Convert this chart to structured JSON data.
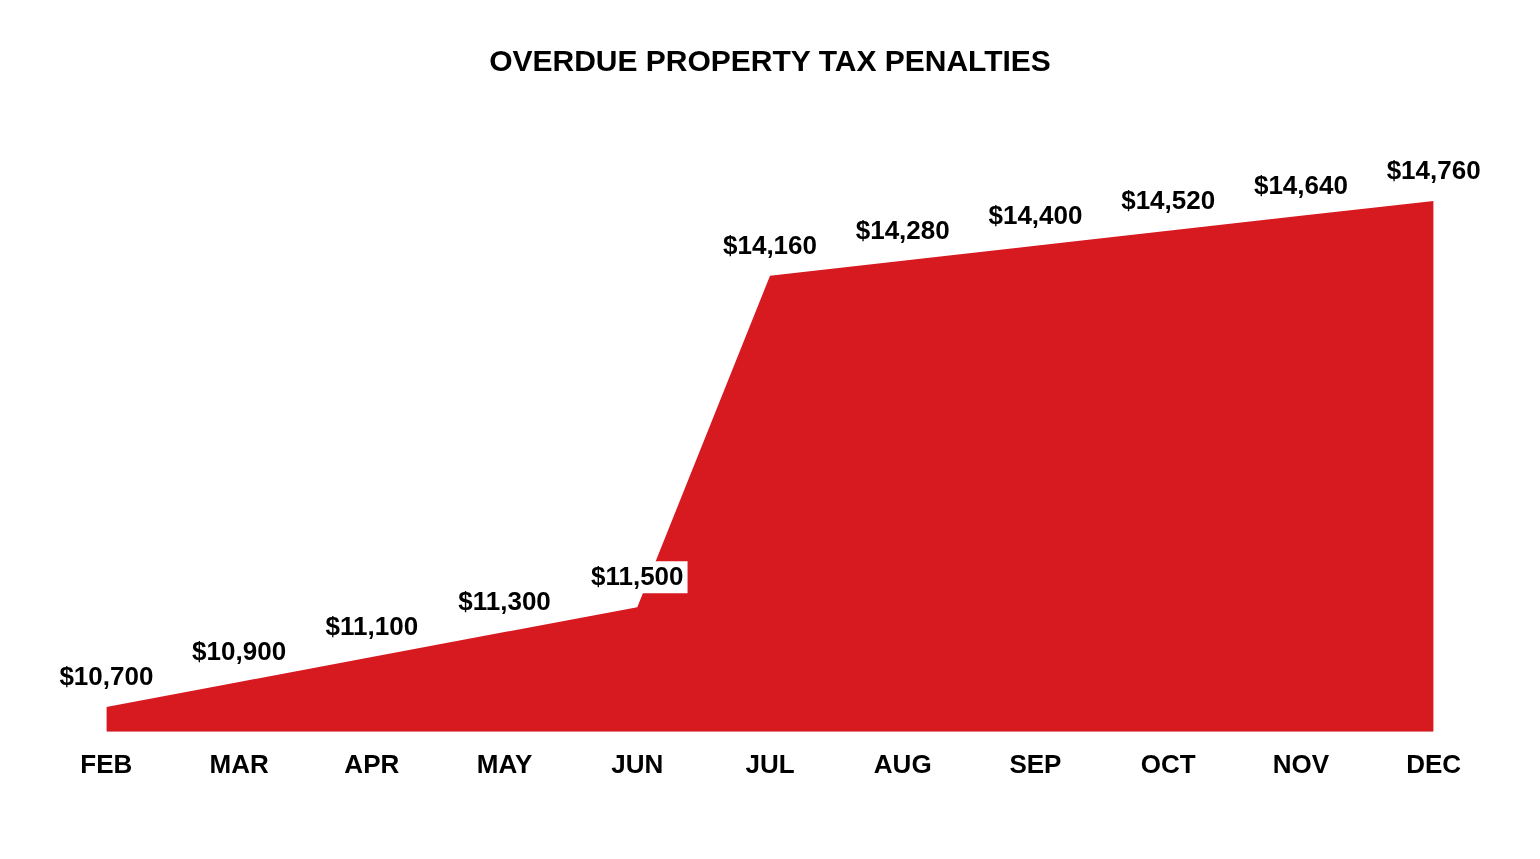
{
  "chart_data": {
    "type": "area",
    "title": "OVERDUE PROPERTY TAX PENALTIES",
    "categories": [
      "FEB",
      "MAR",
      "APR",
      "MAY",
      "JUN",
      "JUL",
      "AUG",
      "SEP",
      "OCT",
      "NOV",
      "DEC"
    ],
    "series": [
      {
        "color": "#d71920",
        "values": [
          10700,
          10900,
          11100,
          11300,
          11500,
          14160,
          14280,
          14400,
          14520,
          14640,
          14760
        ],
        "value_labels": [
          "$10,700",
          "$10,900",
          "$11,100",
          "$11,300",
          "$11,500",
          "$14,160",
          "$14,280",
          "$14,400",
          "$14,520",
          "$14,640",
          "$14,760"
        ]
      }
    ],
    "legend": false,
    "marker": "none",
    "tick_labels": "x"
  }
}
